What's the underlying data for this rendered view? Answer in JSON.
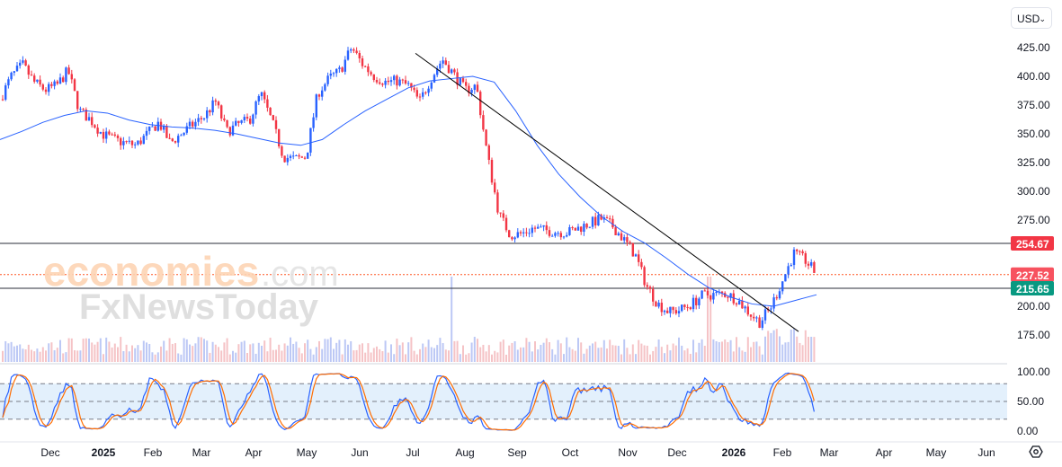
{
  "currency": "USD",
  "watermark": {
    "line1": "economies",
    "line1b": ".com",
    "line2": "FxNewsToday"
  },
  "chart_data": {
    "type": "candlestick",
    "price_axis": {
      "ticks": [
        425,
        400,
        375,
        350,
        325,
        300,
        275,
        250,
        225,
        200,
        175
      ],
      "labels": [
        "425.00",
        "400.00",
        "375.00",
        "350.00",
        "325.00",
        "300.00",
        "275.00",
        "200.00",
        "175.00"
      ],
      "range": [
        160,
        435
      ]
    },
    "time_axis": {
      "labels": [
        "Dec",
        "2025",
        "Feb",
        "Mar",
        "Apr",
        "May",
        "Jun",
        "Jul",
        "Aug",
        "Sep",
        "Oct",
        "Nov",
        "Dec",
        "2026",
        "Feb",
        "Mar",
        "Apr",
        "May",
        "Jun"
      ],
      "bold": [
        "2025",
        "2026"
      ]
    },
    "weekly_closes": [
      380,
      400,
      410,
      395,
      388,
      392,
      405,
      370,
      362,
      350,
      345,
      342,
      340,
      350,
      360,
      342,
      350,
      358,
      365,
      378,
      352,
      358,
      362,
      385,
      360,
      330,
      328,
      330,
      385,
      398,
      405,
      425,
      410,
      400,
      395,
      396,
      392,
      378,
      398,
      415,
      402,
      388,
      392,
      330,
      280,
      262,
      263,
      268,
      266,
      265,
      264,
      268,
      272,
      276,
      270,
      258,
      245,
      218,
      202,
      195,
      197,
      202,
      210,
      210,
      211,
      206,
      195,
      186,
      200,
      222,
      246,
      240,
      228
    ],
    "moving_average": [
      345,
      352,
      360,
      366,
      370,
      368,
      362,
      358,
      356,
      355,
      353,
      350,
      346,
      342,
      340,
      345,
      358,
      370,
      380,
      390,
      396,
      398,
      400,
      395,
      370,
      340,
      315,
      295,
      278,
      265,
      255,
      242,
      228,
      216,
      208,
      202,
      200,
      205,
      210
    ],
    "levels": [
      {
        "label": "254.67",
        "value": 254.67,
        "color": "#f23645"
      },
      {
        "label": "227.52",
        "value": 227.52,
        "color": "#f7525f",
        "style": "dotted"
      },
      {
        "label": "215.65",
        "value": 215.65,
        "color": "#089981"
      }
    ],
    "trendline": {
      "from": 420,
      "to": 178
    },
    "oscillator": {
      "type": "stochastic",
      "labels": [
        "100.00",
        "50.00",
        "0.00"
      ],
      "bands": [
        20,
        50,
        80
      ],
      "range": [
        0,
        100
      ]
    }
  }
}
